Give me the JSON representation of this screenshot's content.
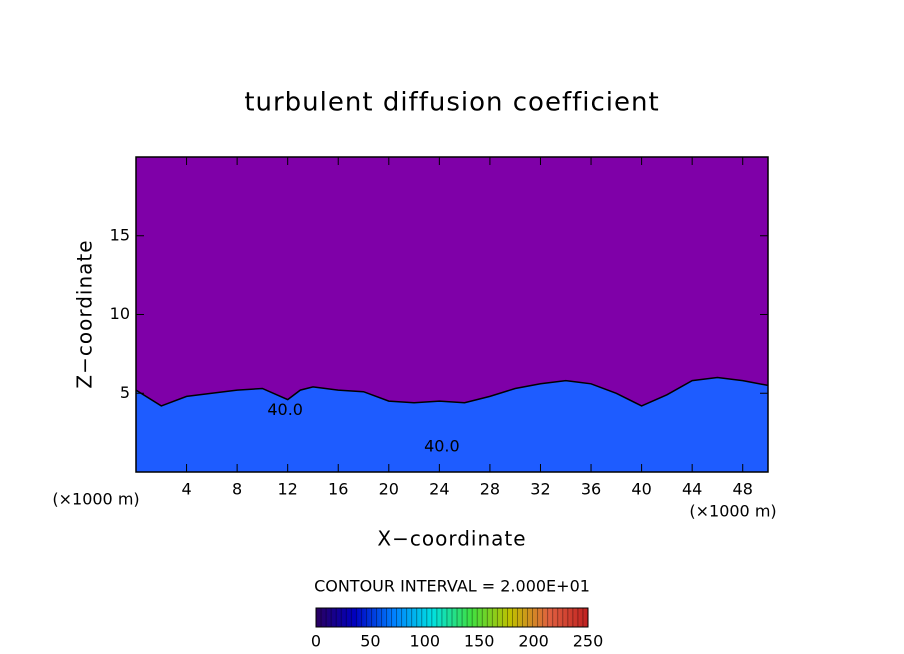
{
  "chart_data": {
    "type": "contour",
    "title": "turbulent diffusion coefficient",
    "xlabel": "X−coordinate",
    "ylabel": "Z−coordinate",
    "x_unit_label": "(×1000 m)",
    "contour_interval_label": "CONTOUR INTERVAL = 2.000E+01",
    "xlim": [
      0,
      50
    ],
    "ylim": [
      0,
      20
    ],
    "xticks": [
      4,
      8,
      12,
      16,
      20,
      24,
      28,
      32,
      36,
      40,
      44,
      48
    ],
    "yticks": [
      5,
      10,
      15
    ],
    "background_color": "#7f00a8",
    "layer_color": "#1e5cff",
    "contour_color": "#000000",
    "layer_top": {
      "x": [
        0,
        2,
        4,
        6,
        8,
        10,
        12,
        13,
        14,
        16,
        18,
        20,
        22,
        24,
        26,
        28,
        30,
        32,
        34,
        36,
        38,
        40,
        42,
        44,
        46,
        48,
        50
      ],
      "values": [
        5.2,
        4.2,
        4.8,
        5.0,
        5.2,
        5.3,
        4.6,
        5.2,
        5.4,
        5.2,
        5.1,
        4.5,
        4.4,
        4.5,
        4.4,
        4.8,
        5.3,
        5.6,
        5.8,
        5.6,
        5.0,
        4.2,
        4.9,
        5.8,
        6.0,
        5.8,
        5.5
      ]
    },
    "contour_labels": [
      {
        "label": "40.0",
        "x": 11.8,
        "y": 3.9
      },
      {
        "label": "40.0",
        "x": 24.2,
        "y": 1.6
      }
    ],
    "colormap": [
      "#2a0060",
      "#0000c0",
      "#0080ff",
      "#00e0e0",
      "#40e040",
      "#c0c000",
      "#e06040",
      "#c02020"
    ],
    "clim": [
      0,
      250
    ],
    "cticks": [
      0,
      50,
      100,
      150,
      200,
      250
    ]
  }
}
